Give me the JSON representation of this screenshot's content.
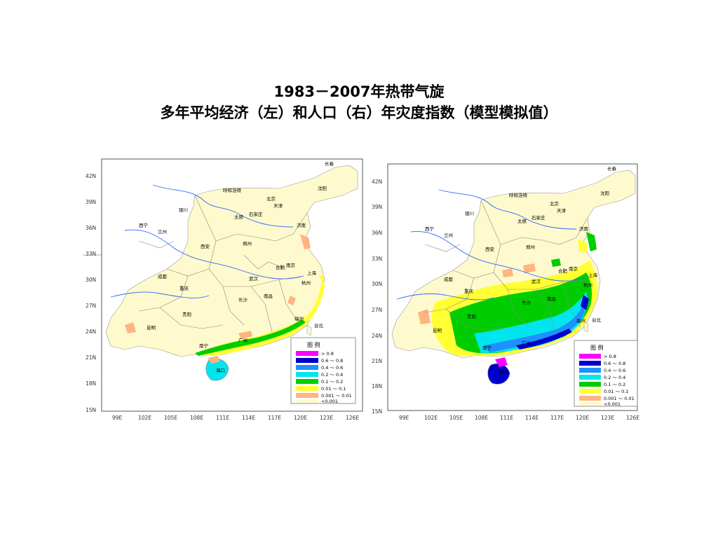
{
  "title": {
    "line1": "1983－2007年热带气旋",
    "line2": "多年平均经济（左）和人口（右）年灾度指数（模型模拟值）"
  },
  "maps": [
    {
      "name": "economic",
      "lat_labels": [
        "42N",
        "39N",
        "36N",
        "33N",
        "30N",
        "27N",
        "24N",
        "21N",
        "18N",
        "15N"
      ],
      "lon_labels": [
        "99E",
        "102E",
        "105E",
        "108E",
        "111E",
        "114E",
        "117E",
        "120E",
        "123E",
        "126E"
      ],
      "cities": [
        "长春",
        "沈阳",
        "呼和浩特",
        "北京",
        "天津",
        "银川",
        "太原",
        "石家庄",
        "西宁",
        "兰州",
        "济南",
        "西安",
        "郑州",
        "合肥",
        "南京",
        "成都",
        "武汉",
        "上海",
        "杭州",
        "重庆",
        "长沙",
        "南昌",
        "贵阳",
        "福州",
        "昆明",
        "台北",
        "南宁",
        "广州",
        "海口"
      ],
      "legend": {
        "title": "图    例",
        "rows": [
          {
            "label": "> 0.8",
            "color": "#ff00ff"
          },
          {
            "label": "0.6  ～  0.8",
            "color": "#0000cd"
          },
          {
            "label": "0.4  ～  0.6",
            "color": "#1e90ff"
          },
          {
            "label": "0.2  ～  0.4",
            "color": "#00e5ee"
          },
          {
            "label": "0.1  ～  0.2",
            "color": "#00cd00"
          },
          {
            "label": "0.01  ～  0.1",
            "color": "#ffff33"
          },
          {
            "label": "0.001  ～  0.01",
            "color": "#ffb482"
          },
          {
            "label": "<0.001",
            "color": "#fffacd"
          }
        ]
      }
    },
    {
      "name": "population",
      "lat_labels": [
        "42N",
        "39N",
        "36N",
        "33N",
        "30N",
        "27N",
        "24N",
        "21N",
        "18N",
        "15N"
      ],
      "lon_labels": [
        "99E",
        "102E",
        "105E",
        "108E",
        "111E",
        "114E",
        "117E",
        "120E",
        "123E",
        "126E"
      ],
      "cities": [
        "长春",
        "沈阳",
        "呼和浩特",
        "北京",
        "天津",
        "银川",
        "太原",
        "石家庄",
        "西宁",
        "兰州",
        "济南",
        "西安",
        "郑州",
        "合肥",
        "南京",
        "成都",
        "武汉",
        "上海",
        "杭州",
        "重庆",
        "长沙",
        "南昌",
        "贵阳",
        "福州",
        "昆明",
        "台北",
        "南宁",
        "广州",
        "海口"
      ],
      "legend": {
        "title": "图    例",
        "rows": [
          {
            "label": "> 0.8",
            "color": "#ff00ff"
          },
          {
            "label": "0.6  ～  0.8",
            "color": "#0000cd"
          },
          {
            "label": "0.4  ～  0.6",
            "color": "#1e90ff"
          },
          {
            "label": "0.2  ～  0.4",
            "color": "#00e5ee"
          },
          {
            "label": "0.1  ～  0.2",
            "color": "#00cd00"
          },
          {
            "label": "0.01  ～  0.1",
            "color": "#ffff33"
          },
          {
            "label": "0.001  ～  0.01",
            "color": "#ffb482"
          },
          {
            "label": "<0.001",
            "color": "#fffacd"
          }
        ]
      }
    }
  ]
}
